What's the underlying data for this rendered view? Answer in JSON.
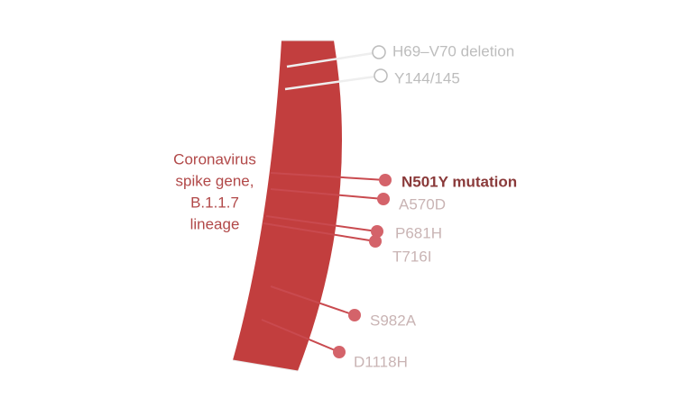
{
  "label": [
    "Coronavirus",
    "spike gene,",
    "B.1.1.7",
    "lineage"
  ],
  "mutations": [
    {
      "name": "H69–V70 deletion"
    },
    {
      "name": "Y144/145"
    },
    {
      "name": "N501Y mutation"
    },
    {
      "name": "A570D"
    },
    {
      "name": "P681H"
    },
    {
      "name": "T716I"
    },
    {
      "name": "S982A"
    },
    {
      "name": "D1118H"
    }
  ]
}
